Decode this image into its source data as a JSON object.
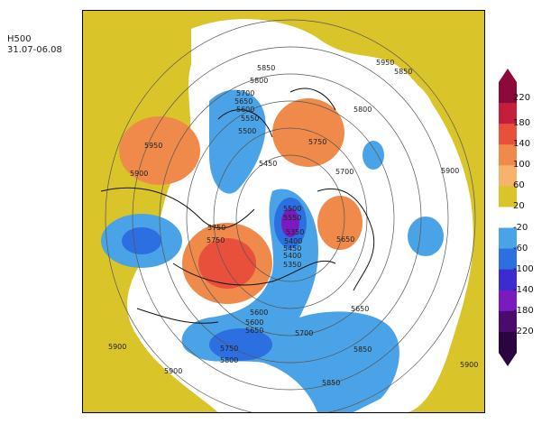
{
  "title": {
    "line1": "H500",
    "line2": "31.07-06.08"
  },
  "colorbar": {
    "levels": [
      "220",
      "180",
      "140",
      "100",
      "60",
      "20",
      "-20",
      "-60",
      "-100",
      "-140",
      "-180",
      "-220"
    ],
    "colors": [
      "#8b0a3a",
      "#c41e3a",
      "#e8503c",
      "#f08a4b",
      "#f7b26b",
      "#d9c42a",
      "#ffffff",
      "#4aa3e6",
      "#2b6fe0",
      "#3b2bd1",
      "#7a1bc0",
      "#4b0a6e",
      "#2a0540"
    ]
  },
  "contour_labels": [
    "5950",
    "5900",
    "5850",
    "5800",
    "5700",
    "5650",
    "5600",
    "5550",
    "5500",
    "5450",
    "5400",
    "5350",
    "5750",
    "5600",
    "5650",
    "5850",
    "5900",
    "5800",
    "5750",
    "5900",
    "5950",
    "5900",
    "5850",
    "5700",
    "5750",
    "5650",
    "5700",
    "5600",
    "5550",
    "5500",
    "5450",
    "5400",
    "5350",
    "5750",
    "5800",
    "5650",
    "5900",
    "5850"
  ]
}
